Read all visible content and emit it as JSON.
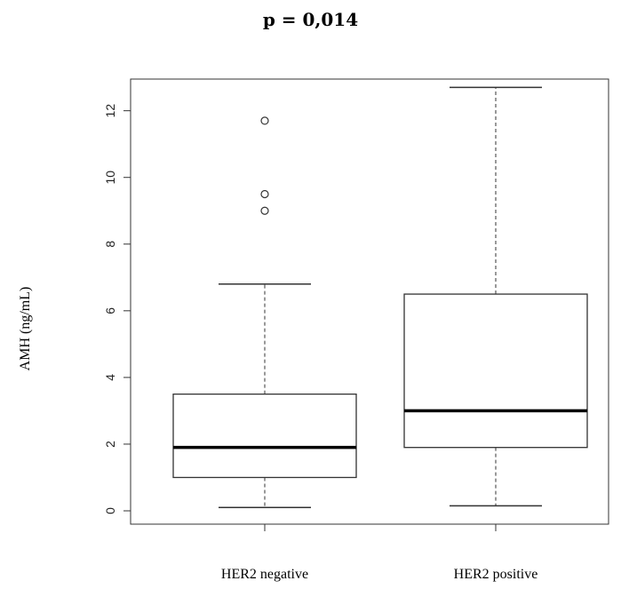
{
  "chart_data": {
    "type": "boxplot",
    "title": "p = 0,014",
    "xlabel": "",
    "ylabel": "AMH (ng/mL)",
    "ylim": [
      -0.4,
      12.95
    ],
    "yticks": [
      0,
      2,
      4,
      6,
      8,
      10,
      12
    ],
    "categories": [
      "HER2 negative",
      "HER2 positive"
    ],
    "boxes": [
      {
        "name": "HER2 negative",
        "min": 0.1,
        "q1": 1.0,
        "median": 1.9,
        "q3": 3.5,
        "max": 6.8,
        "outliers": [
          9.0,
          9.5,
          11.7
        ]
      },
      {
        "name": "HER2 positive",
        "min": 0.15,
        "q1": 1.9,
        "median": 3.0,
        "q3": 6.5,
        "max": 12.7,
        "outliers": []
      }
    ],
    "grid": false
  }
}
